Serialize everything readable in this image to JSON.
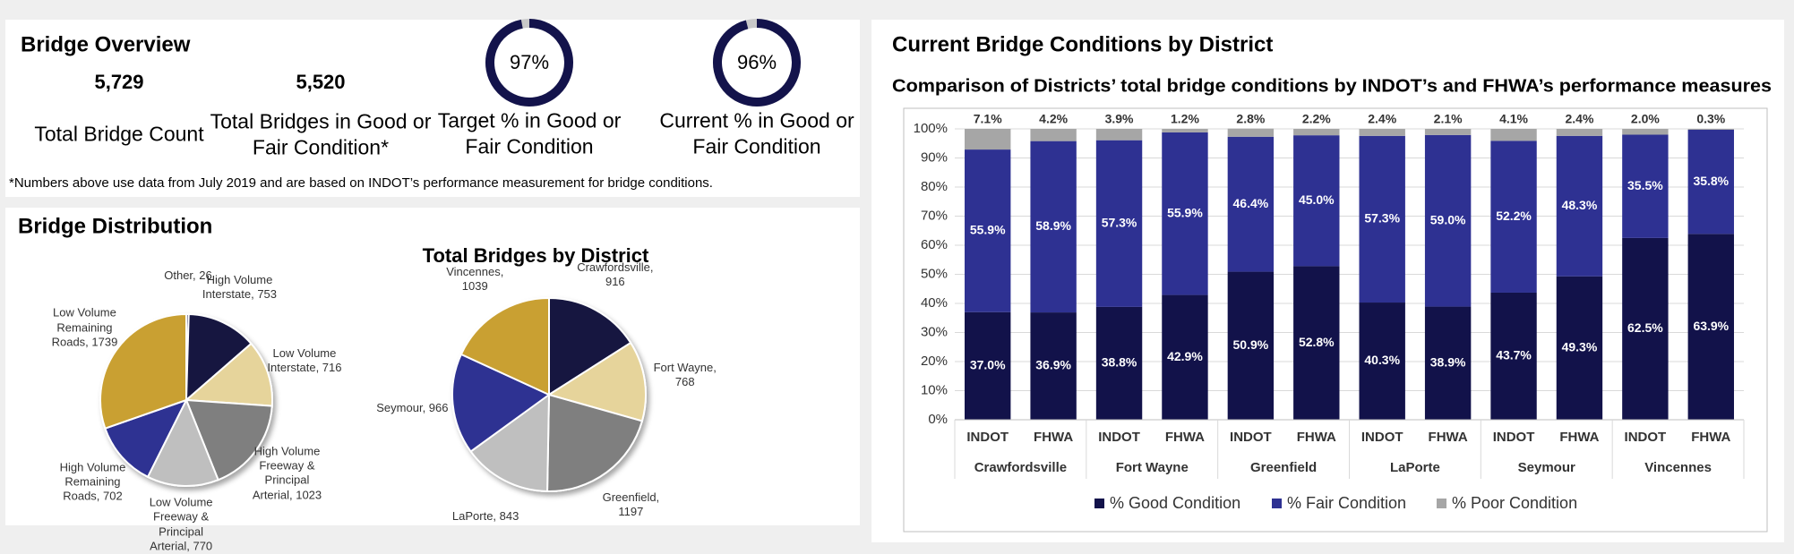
{
  "overview": {
    "title": "Bridge Overview",
    "kpis": [
      {
        "value": "5,729",
        "label": "Total Bridge Count"
      },
      {
        "value": "5,520",
        "label": "Total Bridges in Good or Fair Condition*"
      }
    ],
    "footnote": "*Numbers above use data from July 2019 and are based on INDOT’s performance measurement for bridge conditions."
  },
  "distribution": {
    "title": "Bridge Distribution"
  },
  "chart_data": [
    {
      "type": "donut",
      "value": 97,
      "value_label": "97%",
      "range": [
        0,
        100
      ],
      "label": "Target % in Good or Fair Condition",
      "colors": [
        "#13134b",
        "#c8c8c8"
      ]
    },
    {
      "type": "donut",
      "value": 96,
      "value_label": "96%",
      "range": [
        0,
        100
      ],
      "label": "Current % in Good or Fair Condition",
      "colors": [
        "#13134b",
        "#c8c8c8"
      ]
    },
    {
      "type": "pie",
      "values": [
        26,
        753,
        716,
        1023,
        770,
        702,
        1739
      ],
      "value_labels": [
        "Other, 26",
        "High Volume Interstate, 753",
        "Low Volume Interstate, 716",
        "High Volume Freeway & Principal Arterial, 1023",
        "Low Volume Freeway & Principal Arterial, 770",
        "High Volume Remaining Roads, 702",
        "Low Volume Remaining Roads, 1739"
      ],
      "colors": [
        "#3b3b6b",
        "#14143f",
        "#e6d49b",
        "#7f7f7f",
        "#bfbfbf",
        "#2e3192",
        "#c9a032"
      ]
    },
    {
      "type": "pie",
      "title": "Total Bridges by District",
      "values": [
        916,
        768,
        1197,
        843,
        966,
        1039
      ],
      "value_labels": [
        "Crawfordsville, 916",
        "Fort Wayne, 768",
        "Greenfield, 1197",
        "LaPorte, 843",
        "Seymour, 966",
        "Vincennes, 1039"
      ],
      "colors": [
        "#14143f",
        "#e6d49b",
        "#7f7f7f",
        "#bfbfbf",
        "#2e3192",
        "#c9a032"
      ]
    },
    {
      "type": "bar",
      "stacked": true,
      "title": "Current Bridge Conditions by District",
      "subtitle": "Comparison of Districts’ total bridge conditions by INDOT’s and FHWA’s performance measures",
      "categories": [
        "INDOT",
        "FHWA",
        "INDOT",
        "FHWA",
        "INDOT",
        "FHWA",
        "INDOT",
        "FHWA",
        "INDOT",
        "FHWA",
        "INDOT",
        "FHWA"
      ],
      "groups": [
        "Crawfordsville",
        "Fort Wayne",
        "Greenfield",
        "LaPorte",
        "Seymour",
        "Vincennes"
      ],
      "series": [
        {
          "name": "% Good Condition",
          "color": "#12124a",
          "values": [
            37.0,
            36.9,
            38.8,
            42.9,
            50.9,
            52.8,
            40.3,
            38.9,
            43.7,
            49.3,
            62.5,
            63.9
          ],
          "value_labels": [
            "37.0%",
            "36.9%",
            "38.8%",
            "42.9%",
            "50.9%",
            "52.8%",
            "40.3%",
            "38.9%",
            "43.7%",
            "49.3%",
            "62.5%",
            "63.9%"
          ]
        },
        {
          "name": "% Fair Condition",
          "color": "#2e3192",
          "values": [
            55.9,
            58.9,
            57.3,
            55.9,
            46.4,
            45.0,
            57.3,
            59.0,
            52.2,
            48.3,
            35.5,
            35.8
          ],
          "value_labels": [
            "55.9%",
            "58.9%",
            "57.3%",
            "55.9%",
            "46.4%",
            "45.0%",
            "57.3%",
            "59.0%",
            "52.2%",
            "48.3%",
            "35.5%",
            "35.8%"
          ]
        },
        {
          "name": "% Poor Condition",
          "color": "#a6a6a6",
          "values": [
            7.1,
            4.2,
            3.9,
            1.2,
            2.8,
            2.2,
            2.4,
            2.1,
            4.1,
            2.4,
            2.0,
            0.3
          ],
          "value_labels": [
            "7.1%",
            "4.2%",
            "3.9%",
            "1.2%",
            "2.8%",
            "2.2%",
            "2.4%",
            "2.1%",
            "4.1%",
            "2.4%",
            "2.0%",
            "0.3%"
          ]
        }
      ],
      "ylim": [
        0,
        100
      ],
      "yticks": [
        {
          "value": 0,
          "label": "0%"
        },
        {
          "value": 10,
          "label": "10%"
        },
        {
          "value": 20,
          "label": "20%"
        },
        {
          "value": 30,
          "label": "30%"
        },
        {
          "value": 40,
          "label": "40%"
        },
        {
          "value": 50,
          "label": "50%"
        },
        {
          "value": 60,
          "label": "60%"
        },
        {
          "value": 70,
          "label": "70%"
        },
        {
          "value": 80,
          "label": "80%"
        },
        {
          "value": 90,
          "label": "90%"
        },
        {
          "value": 100,
          "label": "100%"
        }
      ],
      "grid": true,
      "legend": "bottom"
    }
  ]
}
